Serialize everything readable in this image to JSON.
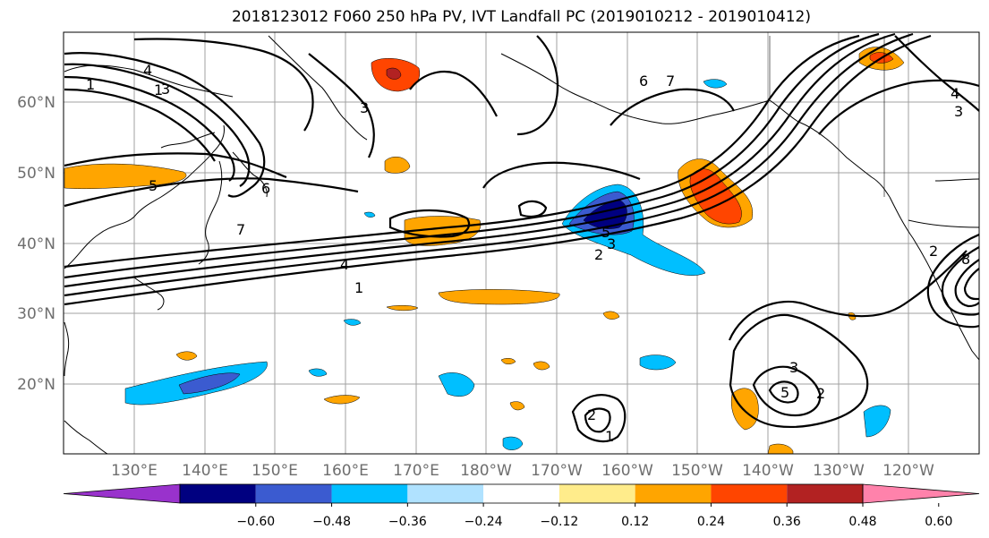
{
  "title": "2018123012 F060 250 hPa PV, IVT Landfall PC (2019010212 - 2019010412)",
  "lat_labels": [
    "60°N",
    "50°N",
    "40°N",
    "30°N",
    "20°N"
  ],
  "lon_labels": [
    "130°E",
    "140°E",
    "150°E",
    "160°E",
    "170°E",
    "180°W",
    "170°W",
    "160°W",
    "150°W",
    "140°W",
    "130°W",
    "120°W"
  ],
  "contour_labels": [
    "1",
    "3",
    "4",
    "1",
    "5",
    "6",
    "7",
    "6",
    "7",
    "5",
    "3",
    "2",
    "4",
    "1",
    "3",
    "5",
    "2",
    "1",
    "2",
    "3",
    "4",
    "8",
    "2",
    "3"
  ],
  "colorbar": {
    "ticks": [
      "−0.60",
      "−0.48",
      "−0.36",
      "−0.24",
      "−0.12",
      "0.12",
      "0.24",
      "0.36",
      "0.48",
      "0.60"
    ],
    "colors": [
      "#9932cc",
      "#000080",
      "#3b5bd0",
      "#00bfff",
      "#b0e2ff",
      "#ffffff",
      "#ffec8b",
      "#ffa500",
      "#ff4500",
      "#b22222",
      "#ff82ab"
    ]
  }
}
